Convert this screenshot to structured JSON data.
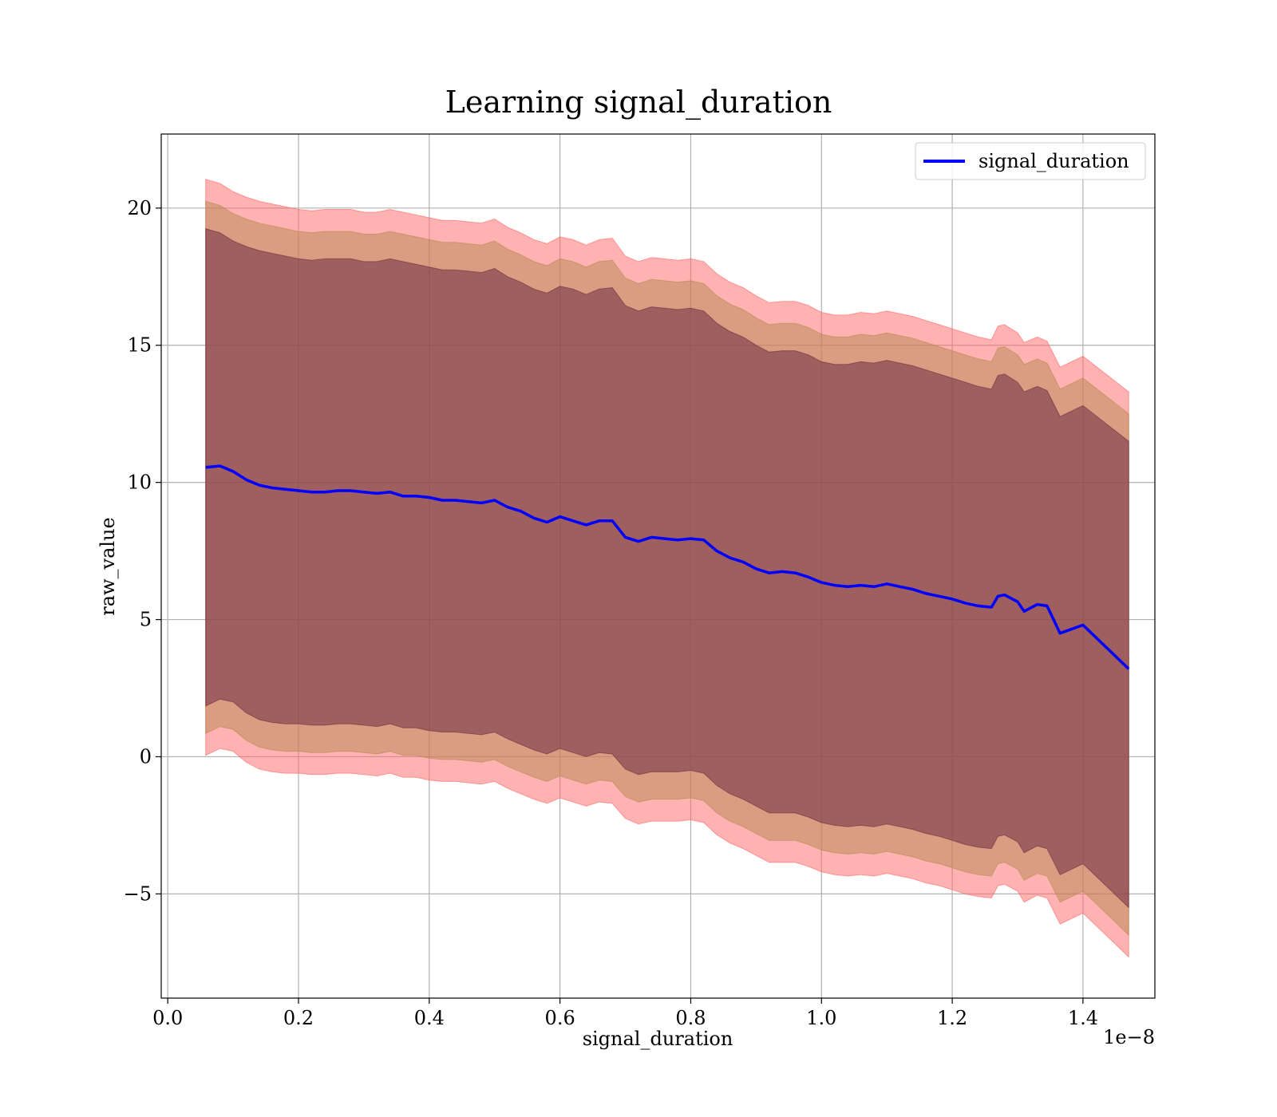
{
  "chart_data": {
    "type": "line",
    "title": "Learning signal_duration",
    "xlabel": "signal_duration",
    "ylabel": "raw_value",
    "x_offset_label": "1e−8",
    "xlim": [
      -0.01,
      1.51
    ],
    "ylim": [
      -8.8,
      22.7
    ],
    "grid": true,
    "legend_position": "top-right",
    "x_ticks": [
      0.0,
      0.2,
      0.4,
      0.6,
      0.8,
      1.0,
      1.2,
      1.4
    ],
    "x_tick_labels": [
      "0.0",
      "0.2",
      "0.4",
      "0.6",
      "0.8",
      "1.0",
      "1.2",
      "1.4"
    ],
    "y_ticks": [
      -5,
      0,
      5,
      10,
      15,
      20
    ],
    "y_tick_labels": [
      "−5",
      "0",
      "5",
      "10",
      "15",
      "20"
    ],
    "x": [
      0.058,
      0.08,
      0.1,
      0.12,
      0.14,
      0.16,
      0.18,
      0.2,
      0.22,
      0.24,
      0.26,
      0.28,
      0.3,
      0.32,
      0.34,
      0.36,
      0.38,
      0.4,
      0.42,
      0.44,
      0.46,
      0.48,
      0.5,
      0.52,
      0.54,
      0.56,
      0.58,
      0.6,
      0.62,
      0.64,
      0.66,
      0.68,
      0.7,
      0.72,
      0.74,
      0.76,
      0.78,
      0.8,
      0.82,
      0.84,
      0.86,
      0.88,
      0.9,
      0.92,
      0.94,
      0.96,
      0.98,
      1.0,
      1.02,
      1.04,
      1.06,
      1.08,
      1.1,
      1.12,
      1.14,
      1.16,
      1.18,
      1.2,
      1.22,
      1.24,
      1.26,
      1.27,
      1.28,
      1.3,
      1.31,
      1.33,
      1.345,
      1.365,
      1.4,
      1.47
    ],
    "series": [
      {
        "name": "signal_duration",
        "color": "#0000ff",
        "values": [
          10.55,
          10.6,
          10.4,
          10.1,
          9.9,
          9.8,
          9.75,
          9.7,
          9.65,
          9.65,
          9.7,
          9.7,
          9.65,
          9.6,
          9.65,
          9.5,
          9.5,
          9.45,
          9.35,
          9.35,
          9.3,
          9.25,
          9.35,
          9.1,
          8.95,
          8.7,
          8.55,
          8.75,
          8.6,
          8.45,
          8.6,
          8.6,
          8.0,
          7.85,
          8.0,
          7.95,
          7.9,
          7.95,
          7.9,
          7.5,
          7.25,
          7.1,
          6.85,
          6.7,
          6.75,
          6.7,
          6.55,
          6.35,
          6.25,
          6.2,
          6.25,
          6.2,
          6.3,
          6.2,
          6.1,
          5.95,
          5.85,
          5.75,
          5.6,
          5.5,
          5.45,
          5.85,
          5.9,
          5.65,
          5.3,
          5.55,
          5.5,
          4.5,
          4.8,
          3.2
        ]
      }
    ],
    "bands": [
      {
        "name": "band-outer",
        "color": "#ff6666",
        "opacity": 0.5,
        "upper": [
          21.05,
          20.9,
          20.6,
          20.4,
          20.25,
          20.15,
          20.05,
          19.95,
          19.9,
          19.95,
          19.95,
          19.95,
          19.85,
          19.85,
          19.95,
          19.85,
          19.75,
          19.65,
          19.55,
          19.55,
          19.5,
          19.45,
          19.6,
          19.3,
          19.1,
          18.85,
          18.7,
          18.95,
          18.85,
          18.65,
          18.85,
          18.9,
          18.25,
          18.05,
          18.2,
          18.15,
          18.1,
          18.15,
          18.05,
          17.6,
          17.3,
          17.1,
          16.8,
          16.55,
          16.6,
          16.6,
          16.45,
          16.2,
          16.1,
          16.1,
          16.2,
          16.15,
          16.25,
          16.15,
          16.05,
          15.9,
          15.75,
          15.6,
          15.45,
          15.3,
          15.2,
          15.7,
          15.75,
          15.45,
          15.1,
          15.3,
          15.15,
          14.2,
          14.6,
          13.3
        ],
        "lower": [
          0.05,
          0.3,
          0.2,
          -0.2,
          -0.45,
          -0.55,
          -0.6,
          -0.6,
          -0.65,
          -0.65,
          -0.6,
          -0.6,
          -0.65,
          -0.7,
          -0.6,
          -0.75,
          -0.75,
          -0.85,
          -0.9,
          -0.9,
          -0.95,
          -1.0,
          -0.9,
          -1.15,
          -1.35,
          -1.55,
          -1.7,
          -1.5,
          -1.65,
          -1.8,
          -1.65,
          -1.7,
          -2.25,
          -2.45,
          -2.35,
          -2.35,
          -2.35,
          -2.3,
          -2.4,
          -2.85,
          -3.15,
          -3.35,
          -3.6,
          -3.85,
          -3.85,
          -3.85,
          -4.0,
          -4.2,
          -4.3,
          -4.35,
          -4.3,
          -4.35,
          -4.25,
          -4.35,
          -4.45,
          -4.6,
          -4.7,
          -4.85,
          -5.0,
          -5.1,
          -5.15,
          -4.7,
          -4.65,
          -4.9,
          -5.3,
          -5.05,
          -5.15,
          -6.1,
          -5.7,
          -7.3
        ]
      },
      {
        "name": "band-middle",
        "color": "#b5884f",
        "opacity": 0.5,
        "upper": [
          20.25,
          20.1,
          19.8,
          19.6,
          19.45,
          19.35,
          19.25,
          19.15,
          19.1,
          19.15,
          19.15,
          19.15,
          19.05,
          19.05,
          19.15,
          19.05,
          18.95,
          18.85,
          18.75,
          18.75,
          18.7,
          18.65,
          18.8,
          18.5,
          18.3,
          18.05,
          17.9,
          18.15,
          18.05,
          17.85,
          18.05,
          18.1,
          17.45,
          17.25,
          17.4,
          17.35,
          17.3,
          17.35,
          17.25,
          16.8,
          16.5,
          16.3,
          16.0,
          15.75,
          15.8,
          15.8,
          15.65,
          15.4,
          15.3,
          15.3,
          15.4,
          15.35,
          15.45,
          15.35,
          15.25,
          15.1,
          14.95,
          14.8,
          14.65,
          14.5,
          14.4,
          14.9,
          14.95,
          14.65,
          14.3,
          14.5,
          14.35,
          13.4,
          13.8,
          12.5
        ],
        "lower": [
          0.85,
          1.1,
          1.0,
          0.6,
          0.35,
          0.25,
          0.2,
          0.2,
          0.15,
          0.15,
          0.2,
          0.2,
          0.15,
          0.1,
          0.2,
          0.05,
          0.05,
          -0.05,
          -0.1,
          -0.1,
          -0.15,
          -0.2,
          -0.1,
          -0.35,
          -0.55,
          -0.75,
          -0.9,
          -0.7,
          -0.85,
          -1.0,
          -0.85,
          -0.9,
          -1.45,
          -1.65,
          -1.55,
          -1.55,
          -1.55,
          -1.5,
          -1.6,
          -2.05,
          -2.35,
          -2.55,
          -2.8,
          -3.05,
          -3.05,
          -3.05,
          -3.2,
          -3.4,
          -3.5,
          -3.55,
          -3.5,
          -3.55,
          -3.45,
          -3.55,
          -3.65,
          -3.8,
          -3.9,
          -4.05,
          -4.2,
          -4.3,
          -4.35,
          -3.9,
          -3.85,
          -4.1,
          -4.5,
          -4.25,
          -4.35,
          -5.3,
          -4.9,
          -6.5
        ]
      },
      {
        "name": "band-inner",
        "color": "#6e2b42",
        "opacity": 0.55,
        "upper": [
          19.25,
          19.1,
          18.8,
          18.6,
          18.45,
          18.35,
          18.25,
          18.15,
          18.1,
          18.15,
          18.15,
          18.15,
          18.05,
          18.05,
          18.15,
          18.05,
          17.95,
          17.85,
          17.75,
          17.75,
          17.7,
          17.65,
          17.8,
          17.5,
          17.3,
          17.05,
          16.9,
          17.15,
          17.05,
          16.85,
          17.05,
          17.1,
          16.45,
          16.25,
          16.4,
          16.35,
          16.3,
          16.35,
          16.25,
          15.8,
          15.5,
          15.3,
          15.0,
          14.75,
          14.8,
          14.8,
          14.65,
          14.4,
          14.3,
          14.3,
          14.4,
          14.35,
          14.45,
          14.35,
          14.25,
          14.1,
          13.95,
          13.8,
          13.65,
          13.5,
          13.4,
          13.9,
          13.95,
          13.65,
          13.3,
          13.5,
          13.35,
          12.4,
          12.8,
          11.5
        ],
        "lower": [
          1.85,
          2.1,
          2.0,
          1.6,
          1.35,
          1.25,
          1.2,
          1.2,
          1.15,
          1.15,
          1.2,
          1.2,
          1.15,
          1.1,
          1.2,
          1.05,
          1.05,
          0.95,
          0.9,
          0.9,
          0.85,
          0.8,
          0.9,
          0.65,
          0.45,
          0.25,
          0.1,
          0.3,
          0.15,
          0.0,
          0.15,
          0.1,
          -0.45,
          -0.65,
          -0.55,
          -0.55,
          -0.55,
          -0.5,
          -0.6,
          -1.05,
          -1.35,
          -1.55,
          -1.8,
          -2.05,
          -2.05,
          -2.05,
          -2.2,
          -2.4,
          -2.5,
          -2.55,
          -2.5,
          -2.55,
          -2.45,
          -2.55,
          -2.65,
          -2.8,
          -2.9,
          -3.05,
          -3.2,
          -3.3,
          -3.35,
          -2.9,
          -2.85,
          -3.1,
          -3.5,
          -3.25,
          -3.35,
          -4.3,
          -3.9,
          -5.5
        ]
      }
    ]
  }
}
